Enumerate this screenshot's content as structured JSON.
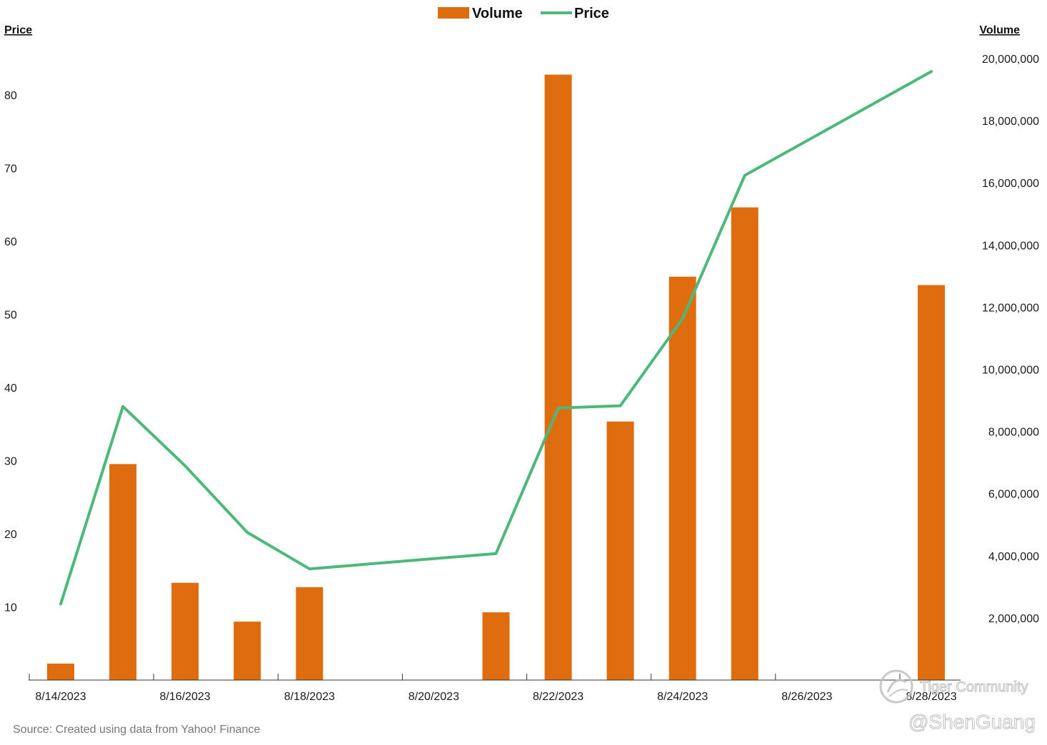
{
  "chart_data": {
    "type": "bar+line",
    "legend": {
      "position": "top-center",
      "items": [
        {
          "label": "Volume",
          "kind": "bar",
          "color": "#e06c10"
        },
        {
          "label": "Price",
          "kind": "line",
          "color": "#4cb87a"
        }
      ]
    },
    "y_left": {
      "label": "Price",
      "ticks": [
        "10",
        "20",
        "30",
        "40",
        "50",
        "60",
        "70",
        "80"
      ],
      "range": [
        0,
        90
      ]
    },
    "y_right": {
      "label": "Volume",
      "ticks": [
        "2,000,000",
        "4,000,000",
        "6,000,000",
        "8,000,000",
        "10,000,000",
        "12,000,000",
        "14,000,000",
        "16,000,000",
        "18,000,000",
        "20,000,000"
      ],
      "range": [
        0,
        20000000
      ]
    },
    "x_tick_labels": [
      "8/14/2023",
      "8/16/2023",
      "8/18/2023",
      "8/20/2023",
      "8/22/2023",
      "8/24/2023",
      "8/26/2023",
      "8/28/2023"
    ],
    "dates": [
      "8/14/2023",
      "8/15/2023",
      "8/16/2023",
      "8/17/2023",
      "8/18/2023",
      "8/19/2023",
      "8/20/2023",
      "8/21/2023",
      "8/22/2023",
      "8/23/2023",
      "8/24/2023",
      "8/25/2023",
      "8/26/2023",
      "8/27/2023",
      "8/28/2023"
    ],
    "series": [
      {
        "name": "Volume",
        "type": "bar",
        "axis": "right",
        "color": "#e06c10",
        "values": [
          530000,
          6950000,
          3130000,
          1880000,
          2990000,
          null,
          null,
          2180000,
          19480000,
          8320000,
          12980000,
          15210000,
          null,
          null,
          12710000
        ]
      },
      {
        "name": "Price",
        "type": "line",
        "axis": "left",
        "color": "#4cb87a",
        "values": [
          10.4,
          37.4,
          29.3,
          20.2,
          15.2,
          null,
          null,
          17.3,
          37.2,
          37.5,
          49.4,
          69.0,
          null,
          null,
          83.2
        ]
      }
    ],
    "grid": false
  },
  "source": "Source: Created using data from Yahoo! Finance",
  "watermark": {
    "brand": "Tiger Community",
    "handle": "@ShenGuang"
  }
}
